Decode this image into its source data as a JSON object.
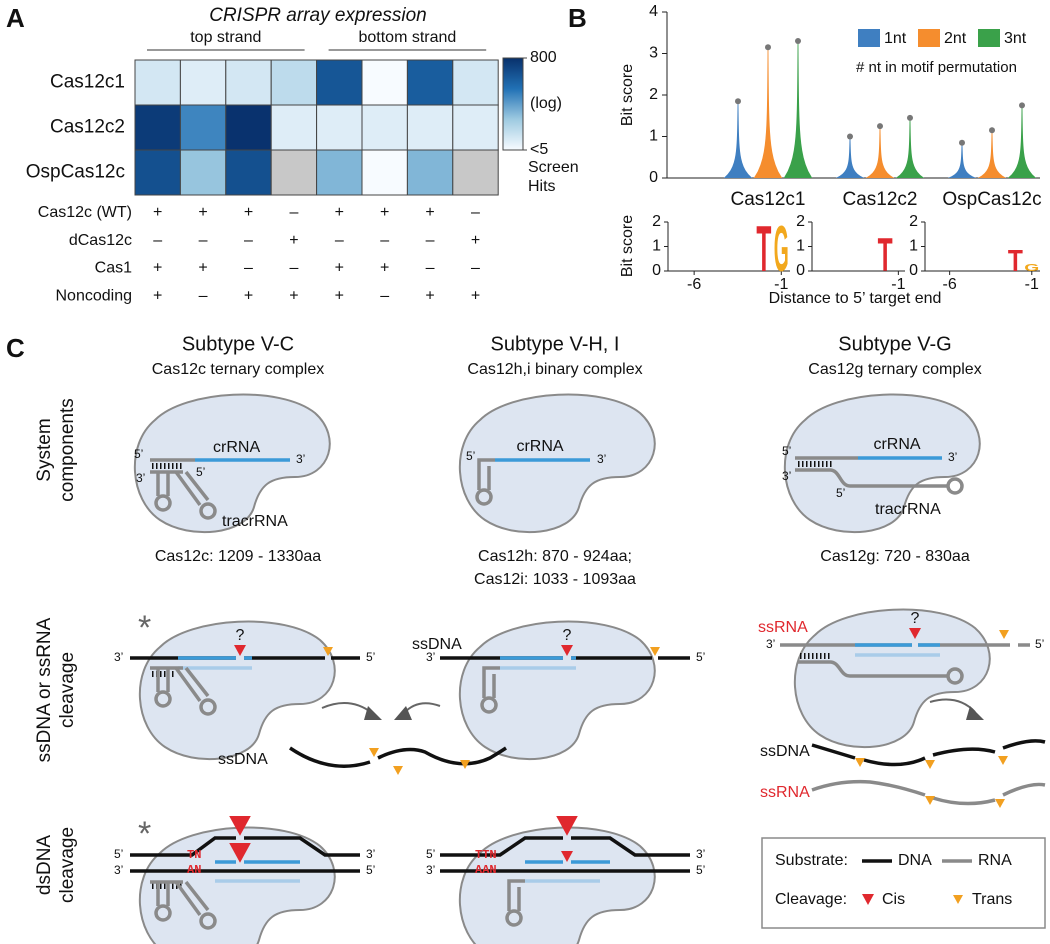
{
  "panel_labels": [
    "A",
    "B",
    "C"
  ],
  "chart_data": [
    {
      "type": "heatmap",
      "title": "CRISPR array expression",
      "column_groups": [
        "top strand",
        "bottom strand"
      ],
      "rows": [
        "Cas12c1",
        "Cas12c2",
        "OspCas12c"
      ],
      "values": [
        [
          10,
          8,
          10,
          15,
          300,
          5,
          250,
          10
        ],
        [
          600,
          100,
          750,
          8,
          8,
          8,
          8,
          8
        ],
        [
          350,
          30,
          350,
          null,
          40,
          5,
          40,
          null
        ]
      ],
      "missing_color": "#c8c8c8",
      "colorbar": {
        "lim": [
          5,
          800
        ],
        "ticks": [
          {
            "value": 800,
            "label": "800"
          },
          {
            "value": 5,
            "label": "<5"
          }
        ],
        "scale": "log",
        "scale_label": "(log)",
        "label": [
          "Screen",
          "Hits"
        ],
        "colors": [
          "#f7fbff",
          "#9ecae1",
          "#2171b5",
          "#08306b"
        ]
      },
      "conditions": {
        "rows": [
          "Cas12c (WT)",
          "dCas12c",
          "Cas1",
          "Noncoding"
        ],
        "values": [
          [
            "+",
            "+",
            "+",
            "–",
            "+",
            "+",
            "+",
            "–"
          ],
          [
            "–",
            "–",
            "–",
            "+",
            "–",
            "–",
            "–",
            "+"
          ],
          [
            "+",
            "+",
            "–",
            "–",
            "+",
            "+",
            "–",
            "–"
          ],
          [
            "+",
            "–",
            "+",
            "+",
            "+",
            "–",
            "+",
            "+"
          ]
        ]
      }
    },
    {
      "type": "violin",
      "ylabel": "Bit score",
      "categories": [
        "Cas12c1",
        "Cas12c2",
        "OspCas12c"
      ],
      "series": [
        {
          "name": "1nt",
          "color": "#3f7fc1",
          "values": [
            1.85,
            1.0,
            0.85
          ]
        },
        {
          "name": "2nt",
          "color": "#f58d2e",
          "values": [
            3.15,
            1.25,
            1.15
          ]
        },
        {
          "name": "3nt",
          "color": "#3aa14a",
          "values": [
            3.3,
            1.45,
            1.75
          ]
        }
      ],
      "ylim": [
        0,
        4
      ],
      "yticks": [
        0,
        1,
        2,
        3,
        4
      ],
      "legend_note": "# nt in motif permutation"
    },
    {
      "type": "logo",
      "ylabel": "Bit score",
      "xlabel": "Distance to 5’ target end",
      "ylim": [
        0,
        2
      ],
      "yticks": [
        0,
        1,
        2
      ],
      "panels": [
        {
          "xlim": [
            -7.5,
            -0.5
          ],
          "xticks": [
            -6,
            -1
          ],
          "letters": [
            "T",
            "G"
          ],
          "x": [
            -2,
            -1
          ],
          "values": [
            1.9,
            1.9
          ],
          "colors": [
            "#e0282e",
            "#f2a81d"
          ]
        },
        {
          "xlim": [
            -7.5,
            -0.5
          ],
          "xticks": [
            -1
          ],
          "letters": [
            "T"
          ],
          "x": [
            -2
          ],
          "values": [
            1.4
          ],
          "colors": [
            "#e0282e"
          ]
        },
        {
          "xlim": [
            -7.5,
            -0.5
          ],
          "xticks": [
            -6,
            -1
          ],
          "letters": [
            "T",
            "G"
          ],
          "x": [
            -2,
            -1
          ],
          "values": [
            0.9,
            0.3
          ],
          "colors": [
            "#e0282e",
            "#f2a81d"
          ]
        }
      ]
    }
  ],
  "diagram": {
    "columns": [
      {
        "title": "Subtype V-C",
        "subtitle": "Cas12c ternary complex",
        "size": [
          "Cas12c: 1209 - 1330aa"
        ]
      },
      {
        "title": "Subtype V-H, I",
        "subtitle": "Cas12h,i binary complex",
        "size": [
          "Cas12h: 870 - 924aa;",
          "Cas12i: 1033 - 1093aa"
        ]
      },
      {
        "title": "Subtype V-G",
        "subtitle": "Cas12g ternary complex",
        "size": [
          "Cas12g: 720 - 830aa"
        ]
      }
    ],
    "row_labels": [
      [
        "System",
        "components"
      ],
      [
        "ssDNA or ssRNA",
        "cleavage"
      ],
      [
        "dsDNA",
        "cleavage"
      ]
    ],
    "labels": {
      "crrna": "crRNA",
      "tracrrna": "tracrRNA",
      "five": "5’",
      "three": "3’",
      "ssdna": "ssDNA",
      "ssrna": "ssRNA",
      "question": "?",
      "asterisk": "*"
    },
    "pam": [
      "TN",
      "AN",
      "TTN",
      "AAN"
    ],
    "legend": {
      "substrate": "Substrate:",
      "dna": "DNA",
      "rna": "RNA",
      "cleavage": "Cleavage:",
      "cis": "Cis",
      "trans": "Trans"
    }
  }
}
